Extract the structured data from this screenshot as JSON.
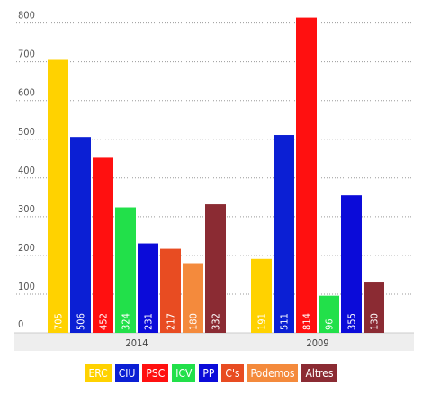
{
  "chart_data": {
    "type": "bar",
    "categories": [
      "2014",
      "2009"
    ],
    "yticks": [
      0,
      100,
      200,
      300,
      400,
      500,
      600,
      700,
      800
    ],
    "ylim": [
      0,
      820
    ],
    "grid": true,
    "legend_position": "bottom",
    "series": [
      {
        "name": "ERC",
        "color": "#ffd200",
        "values": [
          705,
          191
        ]
      },
      {
        "name": "CIU",
        "color": "#0b1fd4",
        "values": [
          506,
          511
        ]
      },
      {
        "name": "PSC",
        "color": "#ff1010",
        "values": [
          452,
          814
        ]
      },
      {
        "name": "ICV",
        "color": "#22e04a",
        "values": [
          324,
          96
        ]
      },
      {
        "name": "PP",
        "color": "#0b0bd9",
        "values": [
          231,
          355
        ]
      },
      {
        "name": "C's",
        "color": "#e84c22",
        "values": [
          217,
          null
        ]
      },
      {
        "name": "Podemos",
        "color": "#f48a3c",
        "values": [
          180,
          null
        ]
      },
      {
        "name": "Altres",
        "color": "#8b2b33",
        "values": [
          332,
          130
        ]
      }
    ]
  }
}
